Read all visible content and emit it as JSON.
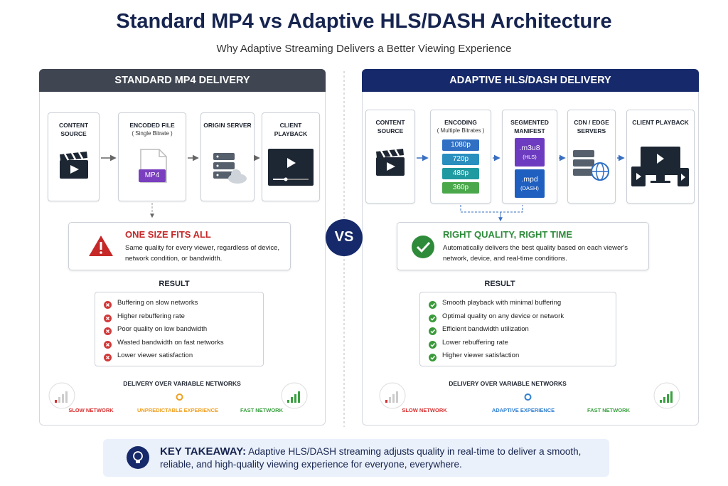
{
  "header": {
    "title": "Standard MP4 vs Adaptive HLS/DASH Architecture",
    "subtitle": "Why Adaptive Streaming Delivers a Better Viewing Experience"
  },
  "vs": "VS",
  "panels": [
    {
      "title": "STANDARD MP4 DELIVERY",
      "steps": [
        {
          "label": "CONTENT SOURCE"
        },
        {
          "label": "ENCODED FILE",
          "note": "( Single Bitrate )",
          "tags": [
            "MP4"
          ]
        },
        {
          "label": "ORIGIN SERVER"
        },
        {
          "label": "CLIENT PLAYBACK"
        }
      ],
      "callout": {
        "title": "ONE SIZE FITS ALL",
        "text": "Same quality for every viewer, regardless of device, network condition, or bandwidth."
      },
      "result_title": "RESULT",
      "results": [
        "Buffering on slow networks",
        "Higher rebuffering rate",
        "Poor quality on low bandwidth",
        "Wasted bandwidth on fast networks",
        "Lower viewer satisfaction"
      ],
      "network": {
        "title": "DELIVERY OVER VARIABLE NETWORKS",
        "left": "SLOW NETWORK",
        "middle": "UNPREDICTABLE EXPERIENCE",
        "right": "FAST NETWORK"
      }
    },
    {
      "title": "ADAPTIVE HLS/DASH DELIVERY",
      "steps": [
        {
          "label": "CONTENT SOURCE"
        },
        {
          "label": "ENCODING",
          "note": "( Multiple Bitrates )",
          "tags": [
            "1080p",
            "720p",
            "480p",
            "360p"
          ]
        },
        {
          "label": "SEGMENTED MANIFEST",
          "files": [
            {
              "ext": ".m3u8",
              "format": "(HLS)"
            },
            {
              "ext": ".mpd",
              "format": "(DASH)"
            }
          ]
        },
        {
          "label": "CDN / EDGE SERVERS"
        },
        {
          "label": "CLIENT PLAYBACK"
        }
      ],
      "callout": {
        "title": "RIGHT QUALITY, RIGHT TIME",
        "text": "Automatically delivers the best quality based on each viewer's network, device, and real-time conditions."
      },
      "result_title": "RESULT",
      "results": [
        "Smooth playback with minimal buffering",
        "Optimal quality on any device or network",
        "Efficient bandwidth utilization",
        "Lower rebuffering rate",
        "Higher viewer satisfaction"
      ],
      "network": {
        "title": "DELIVERY OVER VARIABLE NETWORKS",
        "left": "SLOW NETWORK",
        "middle": "ADAPTIVE EXPERIENCE",
        "right": "FAST NETWORK"
      }
    }
  ],
  "takeaway": {
    "label": "KEY TAKEAWAY:",
    "text": "Adaptive HLS/DASH streaming adjusts quality in real-time to deliver a smooth, reliable, and high-quality viewing experience for everyone, everywhere."
  }
}
